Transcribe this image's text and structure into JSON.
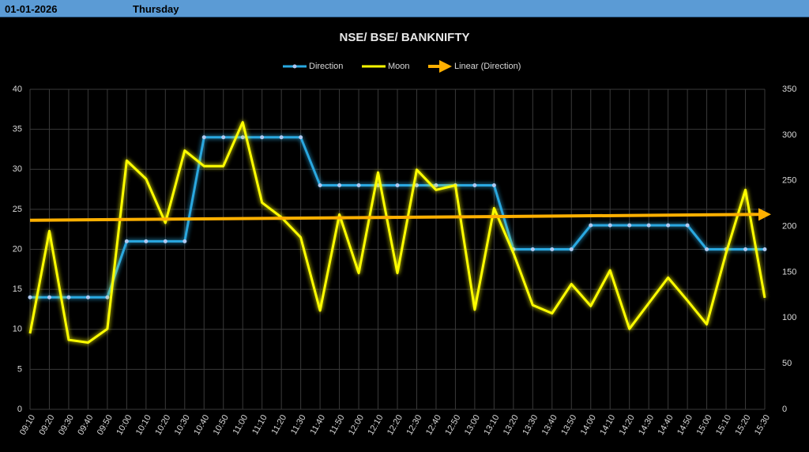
{
  "header": {
    "date": "01-01-2026",
    "day": "Thursday"
  },
  "chart_data": {
    "type": "line",
    "title": "NSE/ BSE/ BANKNIFTY",
    "categories": [
      "09:10",
      "09:20",
      "09:30",
      "09:40",
      "09:50",
      "10:00",
      "10:10",
      "10:20",
      "10:30",
      "10:40",
      "10:50",
      "11:00",
      "11:10",
      "11:20",
      "11:30",
      "11:40",
      "11:50",
      "12:00",
      "12:10",
      "12:20",
      "12:30",
      "12:40",
      "12:50",
      "13:00",
      "13:10",
      "13:20",
      "13:30",
      "13:40",
      "13:50",
      "14:00",
      "14:10",
      "14:20",
      "14:30",
      "14:40",
      "14:50",
      "15:00",
      "15:10",
      "15:20",
      "15:30"
    ],
    "series": [
      {
        "name": "Direction",
        "color": "#29a8e0",
        "values": [
          14,
          14,
          14,
          14,
          14,
          21,
          21,
          21,
          21,
          34,
          34,
          34,
          34,
          34,
          34,
          28,
          28,
          28,
          28,
          28,
          28,
          28,
          28,
          28,
          28,
          20,
          20,
          20,
          20,
          23,
          23,
          23,
          23,
          23,
          23,
          20,
          20,
          20,
          20
        ]
      },
      {
        "name": "Moon",
        "color": "#ffff00",
        "axis": "y2",
        "values": [
          83,
          195,
          76,
          73,
          88,
          272,
          252,
          204,
          283,
          266,
          266,
          314,
          226,
          210,
          188,
          108,
          213,
          149,
          259,
          149,
          262,
          240,
          245,
          109,
          220,
          171,
          114,
          105,
          137,
          113,
          152,
          88,
          116,
          144,
          119,
          93,
          171,
          240,
          122
        ]
      }
    ],
    "trendline": {
      "name": "Linear (Direction)",
      "color": "#ffb000"
    },
    "ylim": [
      0,
      40
    ],
    "yticks": [
      0,
      5,
      10,
      15,
      20,
      25,
      30,
      35,
      40
    ],
    "y2lim": [
      0,
      350
    ],
    "y2ticks": [
      0,
      50,
      100,
      150,
      200,
      250,
      300,
      350
    ],
    "grid": true
  }
}
